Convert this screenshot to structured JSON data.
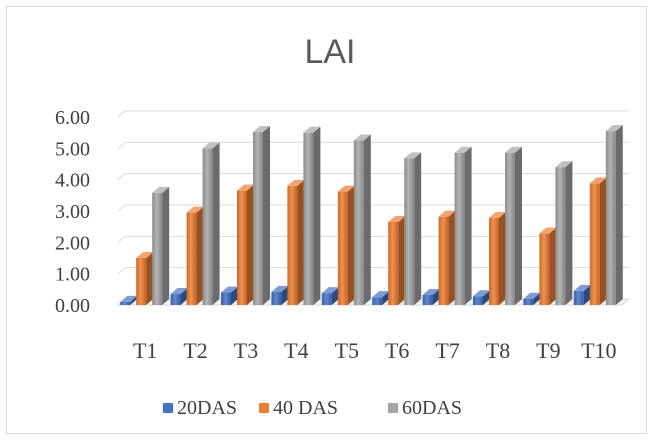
{
  "chart_data": {
    "type": "bar",
    "title": "LAI",
    "categories": [
      "T1",
      "T2",
      "T3",
      "T4",
      "T5",
      "T6",
      "T7",
      "T8",
      "T9",
      "T10"
    ],
    "series": [
      {
        "name": "20DAS",
        "color": "#4472c4",
        "values": [
          0.1,
          0.35,
          0.4,
          0.42,
          0.38,
          0.25,
          0.32,
          0.28,
          0.2,
          0.45
        ]
      },
      {
        "name": "40 DAS",
        "color": "#ed7d31",
        "values": [
          1.5,
          2.95,
          3.65,
          3.8,
          3.62,
          2.65,
          2.82,
          2.78,
          2.28,
          3.88
        ]
      },
      {
        "name": "60DAS",
        "color": "#a5a5a5",
        "values": [
          3.58,
          5.0,
          5.52,
          5.5,
          5.25,
          4.68,
          4.86,
          4.86,
          4.4,
          5.55
        ]
      }
    ],
    "ylim": [
      0,
      6
    ],
    "yticks": [
      "0.00",
      "1.00",
      "2.00",
      "3.00",
      "4.00",
      "5.00",
      "6.00"
    ],
    "xlabel": "",
    "ylabel": "",
    "grid": true,
    "legend_position": "bottom",
    "style": "3d-clustered-column"
  }
}
